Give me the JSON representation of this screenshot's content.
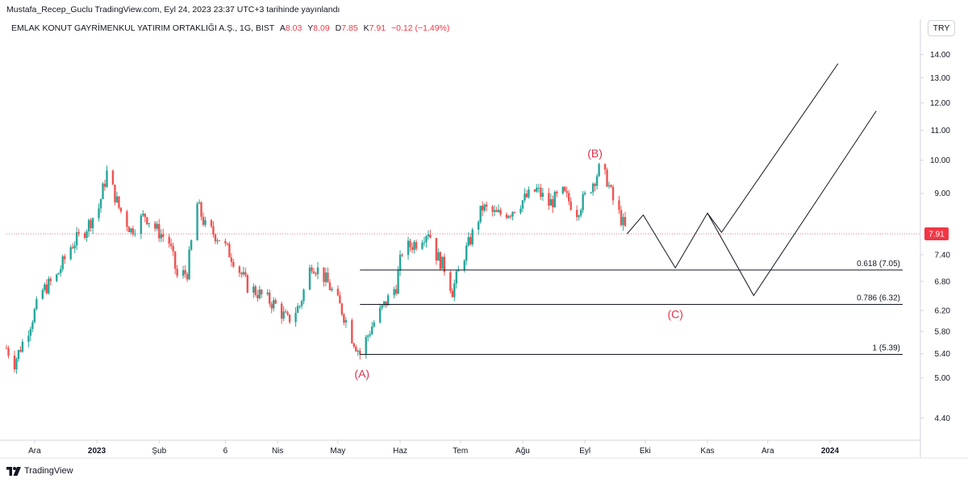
{
  "header": {
    "attribution": "Mustafa_Recep_Guclu TradingView.com, Eyl 24, 2023 23:37 UTC+3 tarihinde yayınlandı"
  },
  "symbol": {
    "name": "EMLAK KONUT GAYRİMENKUL YATIRIM ORTAKLIĞI A.Ş., 1G, BIST",
    "open_label": "A",
    "open": "8.03",
    "high_label": "Y",
    "high": "8.09",
    "low_label": "D",
    "low": "7.85",
    "close_label": "K",
    "close": "7.91",
    "change": "−0.12 (−1.49%)"
  },
  "currency": "TRY",
  "footer": {
    "logo_text": "TradingView"
  },
  "colors": {
    "up": "#26a69a",
    "down": "#ef5350",
    "annotation": "#e0304a",
    "price_badge": "#f23645",
    "line": "#131722"
  },
  "chart_data": {
    "type": "candlestick",
    "title": "",
    "y_axis_ticks": [
      "14.00",
      "13.00",
      "12.00",
      "11.00",
      "10.00",
      "9.00",
      "8.00",
      "7.40",
      "6.80",
      "6.20",
      "5.80",
      "5.40",
      "5.00",
      "4.40"
    ],
    "y_axis_values": [
      14.0,
      13.0,
      12.0,
      11.0,
      10.0,
      9.0,
      8.0,
      7.4,
      6.8,
      6.2,
      5.8,
      5.4,
      5.0,
      4.4
    ],
    "y_scale": "log",
    "ylim": [
      4.1,
      14.8
    ],
    "x_axis_ticks": [
      {
        "label": "Ara",
        "bold": false,
        "date": "2022-12-01"
      },
      {
        "label": "2023",
        "bold": true,
        "date": "2023-01-01"
      },
      {
        "label": "Şub",
        "bold": false,
        "date": "2023-02-01"
      },
      {
        "label": "6",
        "bold": false,
        "date": "2023-03-06"
      },
      {
        "label": "Nis",
        "bold": false,
        "date": "2023-04-01"
      },
      {
        "label": "May",
        "bold": false,
        "date": "2023-05-01"
      },
      {
        "label": "Haz",
        "bold": false,
        "date": "2023-06-01"
      },
      {
        "label": "Tem",
        "bold": false,
        "date": "2023-07-01"
      },
      {
        "label": "Ağu",
        "bold": false,
        "date": "2023-08-01"
      },
      {
        "label": "Eyl",
        "bold": false,
        "date": "2023-09-01"
      },
      {
        "label": "Eki",
        "bold": false,
        "date": "2023-10-01"
      },
      {
        "label": "Kas",
        "bold": false,
        "date": "2023-11-01"
      },
      {
        "label": "Ara",
        "bold": false,
        "date": "2023-12-01"
      },
      {
        "label": "2024",
        "bold": true,
        "date": "2024-01-01"
      }
    ],
    "xlim": [
      "2022-11-17",
      "2024-02-15"
    ],
    "price_series": [
      {
        "date": "2022-11-17",
        "close": 5.5
      },
      {
        "date": "2022-11-21",
        "close": 5.25
      },
      {
        "date": "2022-11-28",
        "close": 5.85
      },
      {
        "date": "2022-12-05",
        "close": 6.6
      },
      {
        "date": "2022-12-12",
        "close": 6.9
      },
      {
        "date": "2022-12-19",
        "close": 7.6
      },
      {
        "date": "2022-12-26",
        "close": 8.0
      },
      {
        "date": "2023-01-02",
        "close": 8.6
      },
      {
        "date": "2023-01-06",
        "close": 9.6
      },
      {
        "date": "2023-01-12",
        "close": 8.6
      },
      {
        "date": "2023-01-18",
        "close": 8.0
      },
      {
        "date": "2023-01-25",
        "close": 8.4
      },
      {
        "date": "2023-01-31",
        "close": 8.0
      },
      {
        "date": "2023-02-06",
        "close": 7.7
      },
      {
        "date": "2023-02-10",
        "close": 6.9
      },
      {
        "date": "2023-02-15",
        "close": 7.0
      },
      {
        "date": "2023-02-20",
        "close": 8.7
      },
      {
        "date": "2023-02-24",
        "close": 8.1
      },
      {
        "date": "2023-03-03",
        "close": 7.8
      },
      {
        "date": "2023-03-10",
        "close": 7.3
      },
      {
        "date": "2023-03-17",
        "close": 6.7
      },
      {
        "date": "2023-03-24",
        "close": 6.5
      },
      {
        "date": "2023-03-31",
        "close": 6.3
      },
      {
        "date": "2023-04-06",
        "close": 6.0
      },
      {
        "date": "2023-04-12",
        "close": 6.3
      },
      {
        "date": "2023-04-18",
        "close": 7.2
      },
      {
        "date": "2023-04-24",
        "close": 6.9
      },
      {
        "date": "2023-04-28",
        "close": 6.6
      },
      {
        "date": "2023-05-03",
        "close": 6.2
      },
      {
        "date": "2023-05-08",
        "close": 5.7
      },
      {
        "date": "2023-05-12",
        "close": 5.4
      },
      {
        "date": "2023-05-18",
        "close": 5.9
      },
      {
        "date": "2023-05-24",
        "close": 6.3
      },
      {
        "date": "2023-05-30",
        "close": 6.7
      },
      {
        "date": "2023-06-02",
        "close": 7.5
      },
      {
        "date": "2023-06-09",
        "close": 7.7
      },
      {
        "date": "2023-06-15",
        "close": 8.0
      },
      {
        "date": "2023-06-19",
        "close": 7.4
      },
      {
        "date": "2023-06-23",
        "close": 7.1
      },
      {
        "date": "2023-06-27",
        "close": 6.6
      },
      {
        "date": "2023-07-03",
        "close": 7.4
      },
      {
        "date": "2023-07-07",
        "close": 7.9
      },
      {
        "date": "2023-07-12",
        "close": 8.6
      },
      {
        "date": "2023-07-19",
        "close": 8.4
      },
      {
        "date": "2023-07-26",
        "close": 8.5
      },
      {
        "date": "2023-08-01",
        "close": 8.8
      },
      {
        "date": "2023-08-08",
        "close": 9.1
      },
      {
        "date": "2023-08-14",
        "close": 8.7
      },
      {
        "date": "2023-08-21",
        "close": 9.0
      },
      {
        "date": "2023-08-28",
        "close": 8.5
      },
      {
        "date": "2023-09-04",
        "close": 9.2
      },
      {
        "date": "2023-09-08",
        "close": 9.7
      },
      {
        "date": "2023-09-12",
        "close": 9.4
      },
      {
        "date": "2023-09-15",
        "close": 8.8
      },
      {
        "date": "2023-09-19",
        "close": 8.3
      },
      {
        "date": "2023-09-22",
        "close": 7.91
      }
    ],
    "last_price": "7.91",
    "fib_levels": [
      {
        "label": "0.618 (7.05)",
        "value": 7.05,
        "start_date": "2023-05-12"
      },
      {
        "label": "0.786 (6.32)",
        "value": 6.32,
        "start_date": "2023-05-12"
      },
      {
        "label": "1 (5.39)",
        "value": 5.39,
        "start_date": "2023-05-12"
      }
    ],
    "projection_paths": [
      {
        "points": [
          {
            "date": "2023-09-22",
            "value": 7.91
          },
          {
            "date": "2023-09-30",
            "value": 8.4
          },
          {
            "date": "2023-10-16",
            "value": 7.1
          },
          {
            "date": "2023-11-01",
            "value": 8.45
          },
          {
            "date": "2023-11-08",
            "value": 7.95
          },
          {
            "date": "2024-01-05",
            "value": 13.6
          }
        ]
      },
      {
        "points": [
          {
            "date": "2023-11-01",
            "value": 8.45
          },
          {
            "date": "2023-11-24",
            "value": 6.5
          },
          {
            "date": "2024-01-24",
            "value": 11.7
          }
        ]
      }
    ],
    "annotations": [
      {
        "text": "(A)",
        "date": "2023-05-13",
        "value": 5.0
      },
      {
        "text": "(B)",
        "date": "2023-09-06",
        "value": 10.1
      },
      {
        "text": "(C)",
        "date": "2023-10-16",
        "value": 6.05
      }
    ]
  }
}
